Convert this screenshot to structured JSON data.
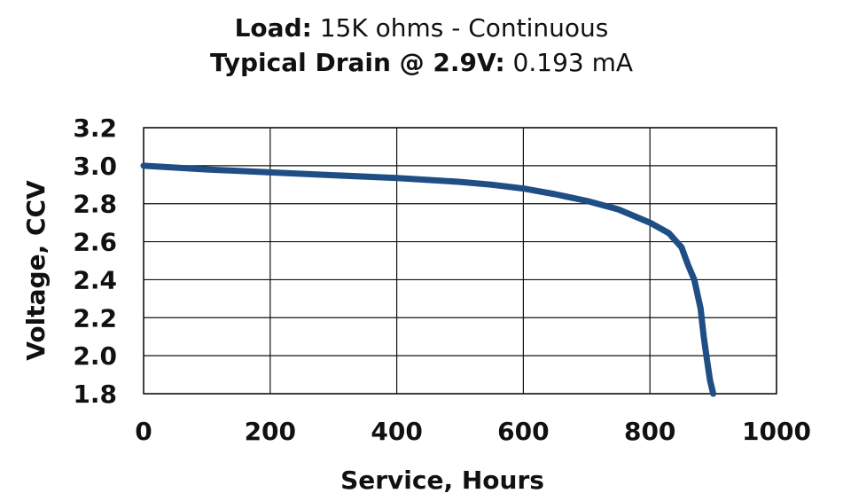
{
  "header": {
    "line1_label": "Load:",
    "line1_value": " 15K ohms - Continuous",
    "line2_label": "Typical Drain @ 2.9V:",
    "line2_value": " 0.193 mA"
  },
  "chart_data": {
    "type": "line",
    "xlabel": "Service, Hours",
    "ylabel": "Voltage, CCV",
    "xlim": [
      0,
      1000
    ],
    "ylim": [
      1.8,
      3.2
    ],
    "x_ticks": [
      "0",
      "200",
      "400",
      "600",
      "800",
      "1000"
    ],
    "y_ticks": [
      "3.2",
      "3.0",
      "2.8",
      "2.6",
      "2.4",
      "2.2",
      "2.0",
      "1.8"
    ],
    "grid": true,
    "line_color": "#1f4e85",
    "series": [
      {
        "x": [
          0,
          100,
          200,
          300,
          400,
          500,
          550,
          600,
          650,
          700,
          750,
          800,
          830,
          850,
          860,
          870,
          880,
          885,
          890,
          895,
          900
        ],
        "y": [
          3.0,
          2.98,
          2.965,
          2.95,
          2.935,
          2.915,
          2.9,
          2.88,
          2.85,
          2.815,
          2.77,
          2.7,
          2.645,
          2.57,
          2.48,
          2.4,
          2.25,
          2.1,
          1.98,
          1.87,
          1.8
        ]
      }
    ]
  }
}
